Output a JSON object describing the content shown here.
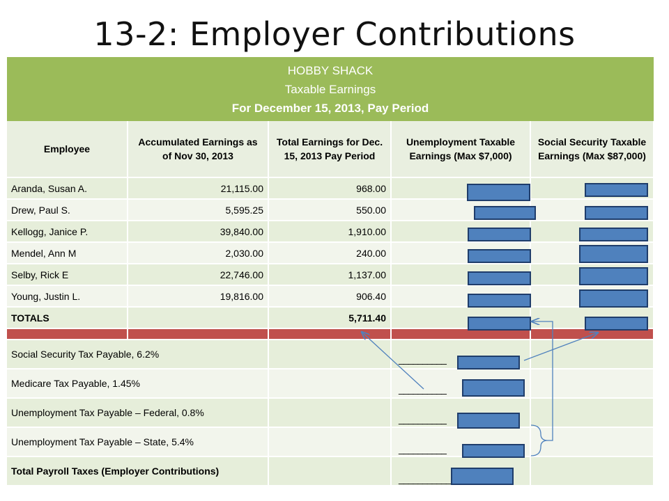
{
  "title": "13-2:  Employer Contributions",
  "banner": {
    "line1": "HOBBY SHACK",
    "line2": "Taxable Earnings",
    "line3": "For December 15, 2013, Pay Period"
  },
  "columns": [
    "Employee",
    "Accumulated Earnings as of Nov 30, 2013",
    "Total Earnings for Dec. 15, 2013 Pay Period",
    "Unemployment Taxable Earnings (Max $7,000)",
    "Social Security Taxable Earnings (Max $87,000)"
  ],
  "employees": [
    {
      "name": "Aranda, Susan A.",
      "accumulated": "21,115.00",
      "current": "968.00"
    },
    {
      "name": "Drew, Paul S.",
      "accumulated": "5,595.25",
      "current": "550.00"
    },
    {
      "name": "Kellogg, Janice P.",
      "accumulated": "39,840.00",
      "current": "1,910.00"
    },
    {
      "name": "Mendel, Ann M",
      "accumulated": "2,030.00",
      "current": "240.00"
    },
    {
      "name": "Selby, Rick E",
      "accumulated": "22,746.00",
      "current": "1,137.00"
    },
    {
      "name": "Young, Justin L.",
      "accumulated": "19,816.00",
      "current": "906.40"
    }
  ],
  "totals": {
    "label": "TOTALS",
    "current": "5,711.40"
  },
  "taxes": [
    {
      "label": "Social Security Tax Payable, 6.2%",
      "blank": "__________"
    },
    {
      "label": "Medicare Tax Payable, 1.45%",
      "blank": "__________"
    },
    {
      "label": "Unemployment Tax Payable – Federal, 0.8%",
      "blank": "__________"
    },
    {
      "label": "Unemployment Tax Payable – State, 5.4%",
      "blank": "__________"
    },
    {
      "label": "Total Payroll Taxes (Employer Contributions)",
      "blank": "____________________"
    }
  ],
  "colors": {
    "banner": "#9BBB59",
    "answer_box": "#4F81BD",
    "red_bar": "#C0504D",
    "arrow": "#4F81BD"
  }
}
